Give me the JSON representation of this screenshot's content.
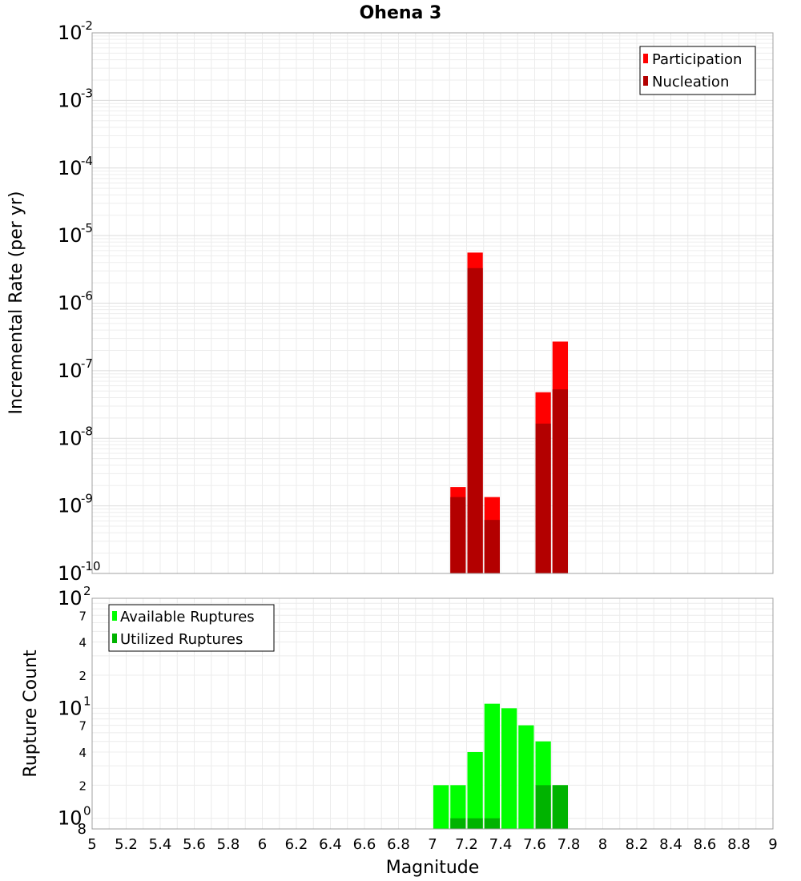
{
  "chart_data": [
    {
      "type": "bar",
      "title": "Ohena 3",
      "xlabel": "Magnitude",
      "ylabel": "Incremental Rate (per yr)",
      "yscale": "log",
      "ylim": [
        1e-10,
        0.01
      ],
      "xlim": [
        5,
        9
      ],
      "x_ticks": [
        "5",
        "5.2",
        "5.4",
        "5.6",
        "5.8",
        "6",
        "6.2",
        "6.4",
        "6.6",
        "6.8",
        "7",
        "7.2",
        "7.4",
        "7.6",
        "7.8",
        "8",
        "8.2",
        "8.4",
        "8.6",
        "8.8",
        "9"
      ],
      "y_tick_exponents": [
        "-10",
        "-9",
        "-8",
        "-7",
        "-6",
        "-5",
        "-4",
        "-3",
        "-2"
      ],
      "grid": true,
      "legend_position": "top-right",
      "bar_width": 0.1,
      "series": [
        {
          "name": "Participation",
          "color": "#ff0000",
          "x": [
            7.15,
            7.25,
            7.35,
            7.65,
            7.75
          ],
          "values": [
            1.9e-09,
            5.6e-06,
            1.35e-09,
            4.8e-08,
            2.7e-07
          ]
        },
        {
          "name": "Nucleation",
          "color": "#b30000",
          "x": [
            7.15,
            7.25,
            7.35,
            7.65,
            7.75
          ],
          "values": [
            1.35e-09,
            3.3e-06,
            6.2e-10,
            1.65e-08,
            5.3e-08
          ]
        }
      ]
    },
    {
      "type": "bar",
      "title": "",
      "xlabel": "Magnitude",
      "ylabel": "Rupture Count",
      "yscale": "log",
      "ylim": [
        0.8,
        100
      ],
      "x_ticks": [
        "5",
        "5.2",
        "5.4",
        "5.6",
        "5.8",
        "6",
        "6.2",
        "6.4",
        "6.6",
        "6.8",
        "7",
        "7.2",
        "7.4",
        "7.6",
        "7.8",
        "8",
        "8.2",
        "8.4",
        "8.6",
        "8.8",
        "9"
      ],
      "y_minor_ticks": [
        "7",
        "4",
        "2",
        "7",
        "4",
        "2",
        "8"
      ],
      "grid": true,
      "legend_position": "top-left",
      "bar_width": 0.1,
      "series": [
        {
          "name": "Available Ruptures",
          "color": "#00ff00",
          "x": [
            7.05,
            7.15,
            7.25,
            7.35,
            7.45,
            7.55,
            7.65,
            7.75
          ],
          "values": [
            2,
            2,
            4,
            11,
            10,
            7,
            5,
            2
          ]
        },
        {
          "name": "Utilized Ruptures",
          "color": "#00b300",
          "x": [
            7.15,
            7.25,
            7.35,
            7.65,
            7.75
          ],
          "values": [
            1,
            1,
            1,
            2,
            2
          ]
        }
      ]
    }
  ]
}
